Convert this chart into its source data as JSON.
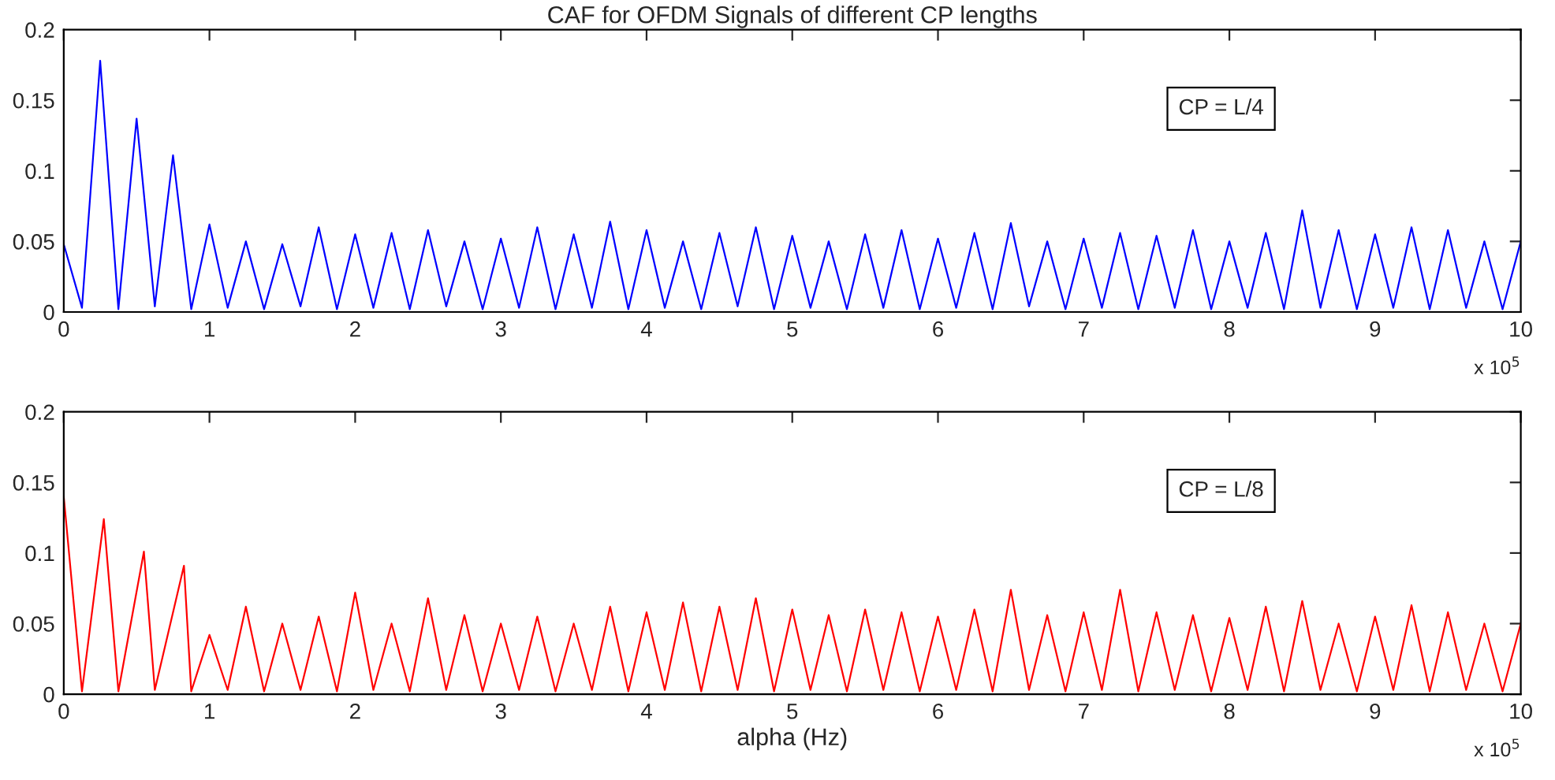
{
  "chart_data": [
    {
      "type": "line",
      "title": "CAF for OFDM Signals of different CP lengths",
      "annotations": [
        "CP = L/4",
        "x 10$^{5}$"
      ],
      "xlim": [
        0,
        10
      ],
      "xticks": [
        0,
        1,
        2,
        3,
        4,
        5,
        6,
        7,
        8,
        9,
        10
      ],
      "ylim": [
        0,
        0.2
      ],
      "yticks": [
        0,
        0.05,
        0.1,
        0.15,
        0.2
      ],
      "grid": false,
      "legend": false,
      "series": [
        {
          "color": "#0000ff",
          "x": [
            0,
            0.125,
            0.25,
            0.375,
            0.5,
            0.625,
            0.75,
            0.875,
            1,
            1.125,
            1.25,
            1.375,
            1.5,
            1.625,
            1.75,
            1.875,
            2,
            2.125,
            2.25,
            2.375,
            2.5,
            2.625,
            2.75,
            2.875,
            3,
            3.125,
            3.25,
            3.375,
            3.5,
            3.625,
            3.75,
            3.875,
            4,
            4.125,
            4.25,
            4.375,
            4.5,
            4.625,
            4.75,
            4.875,
            5,
            5.125,
            5.25,
            5.375,
            5.5,
            5.625,
            5.75,
            5.875,
            6,
            6.125,
            6.25,
            6.375,
            6.5,
            6.625,
            6.75,
            6.875,
            7,
            7.125,
            7.25,
            7.375,
            7.5,
            7.625,
            7.75,
            7.875,
            8,
            8.125,
            8.25,
            8.375,
            8.5,
            8.625,
            8.75,
            8.875,
            9,
            9.125,
            9.25,
            9.375,
            9.5,
            9.625,
            9.75,
            9.875,
            10
          ],
          "values": [
            0.048,
            0.003,
            0.178,
            0.002,
            0.137,
            0.004,
            0.111,
            0.002,
            0.062,
            0.003,
            0.05,
            0.002,
            0.048,
            0.004,
            0.06,
            0.002,
            0.055,
            0.003,
            0.056,
            0.002,
            0.058,
            0.004,
            0.05,
            0.002,
            0.052,
            0.003,
            0.06,
            0.002,
            0.055,
            0.003,
            0.064,
            0.002,
            0.058,
            0.003,
            0.05,
            0.002,
            0.056,
            0.004,
            0.06,
            0.002,
            0.054,
            0.003,
            0.05,
            0.002,
            0.055,
            0.003,
            0.058,
            0.002,
            0.052,
            0.003,
            0.056,
            0.002,
            0.063,
            0.004,
            0.05,
            0.002,
            0.052,
            0.003,
            0.056,
            0.002,
            0.054,
            0.003,
            0.058,
            0.002,
            0.05,
            0.003,
            0.056,
            0.002,
            0.072,
            0.003,
            0.058,
            0.002,
            0.055,
            0.003,
            0.06,
            0.002,
            0.058,
            0.003,
            0.05,
            0.002,
            0.05
          ]
        }
      ]
    },
    {
      "type": "line",
      "xlabel": "alpha (Hz)",
      "annotations": [
        "CP = L/8",
        "x 10$^{5}$"
      ],
      "xlim": [
        0,
        10
      ],
      "xticks": [
        0,
        1,
        2,
        3,
        4,
        5,
        6,
        7,
        8,
        9,
        10
      ],
      "ylim": [
        0,
        0.2
      ],
      "yticks": [
        0,
        0.05,
        0.1,
        0.15,
        0.2
      ],
      "grid": false,
      "legend": false,
      "series": [
        {
          "color": "#ff0000",
          "x": [
            0,
            0.125,
            0.275,
            0.375,
            0.55,
            0.625,
            0.825,
            0.875,
            1,
            1.125,
            1.25,
            1.375,
            1.5,
            1.625,
            1.75,
            1.875,
            2,
            2.125,
            2.25,
            2.375,
            2.5,
            2.625,
            2.75,
            2.875,
            3,
            3.125,
            3.25,
            3.375,
            3.5,
            3.625,
            3.75,
            3.875,
            4,
            4.125,
            4.25,
            4.375,
            4.5,
            4.625,
            4.75,
            4.875,
            5,
            5.125,
            5.25,
            5.375,
            5.5,
            5.625,
            5.75,
            5.875,
            6,
            6.125,
            6.25,
            6.375,
            6.5,
            6.625,
            6.75,
            6.875,
            7,
            7.125,
            7.25,
            7.375,
            7.5,
            7.625,
            7.75,
            7.875,
            8,
            8.125,
            8.25,
            8.375,
            8.5,
            8.625,
            8.75,
            8.875,
            9,
            9.125,
            9.25,
            9.375,
            9.5,
            9.625,
            9.75,
            9.875,
            10
          ],
          "values": [
            0.14,
            0.002,
            0.124,
            0.002,
            0.101,
            0.003,
            0.091,
            0.002,
            0.042,
            0.003,
            0.062,
            0.002,
            0.05,
            0.003,
            0.055,
            0.002,
            0.072,
            0.003,
            0.05,
            0.002,
            0.068,
            0.003,
            0.056,
            0.002,
            0.05,
            0.003,
            0.055,
            0.002,
            0.05,
            0.003,
            0.062,
            0.002,
            0.058,
            0.003,
            0.065,
            0.002,
            0.062,
            0.003,
            0.068,
            0.002,
            0.06,
            0.003,
            0.056,
            0.002,
            0.06,
            0.003,
            0.058,
            0.002,
            0.055,
            0.003,
            0.06,
            0.002,
            0.074,
            0.003,
            0.056,
            0.002,
            0.058,
            0.003,
            0.074,
            0.002,
            0.058,
            0.003,
            0.056,
            0.002,
            0.054,
            0.003,
            0.062,
            0.002,
            0.066,
            0.003,
            0.05,
            0.002,
            0.055,
            0.003,
            0.063,
            0.002,
            0.058,
            0.003,
            0.05,
            0.002,
            0.05
          ]
        }
      ]
    }
  ]
}
